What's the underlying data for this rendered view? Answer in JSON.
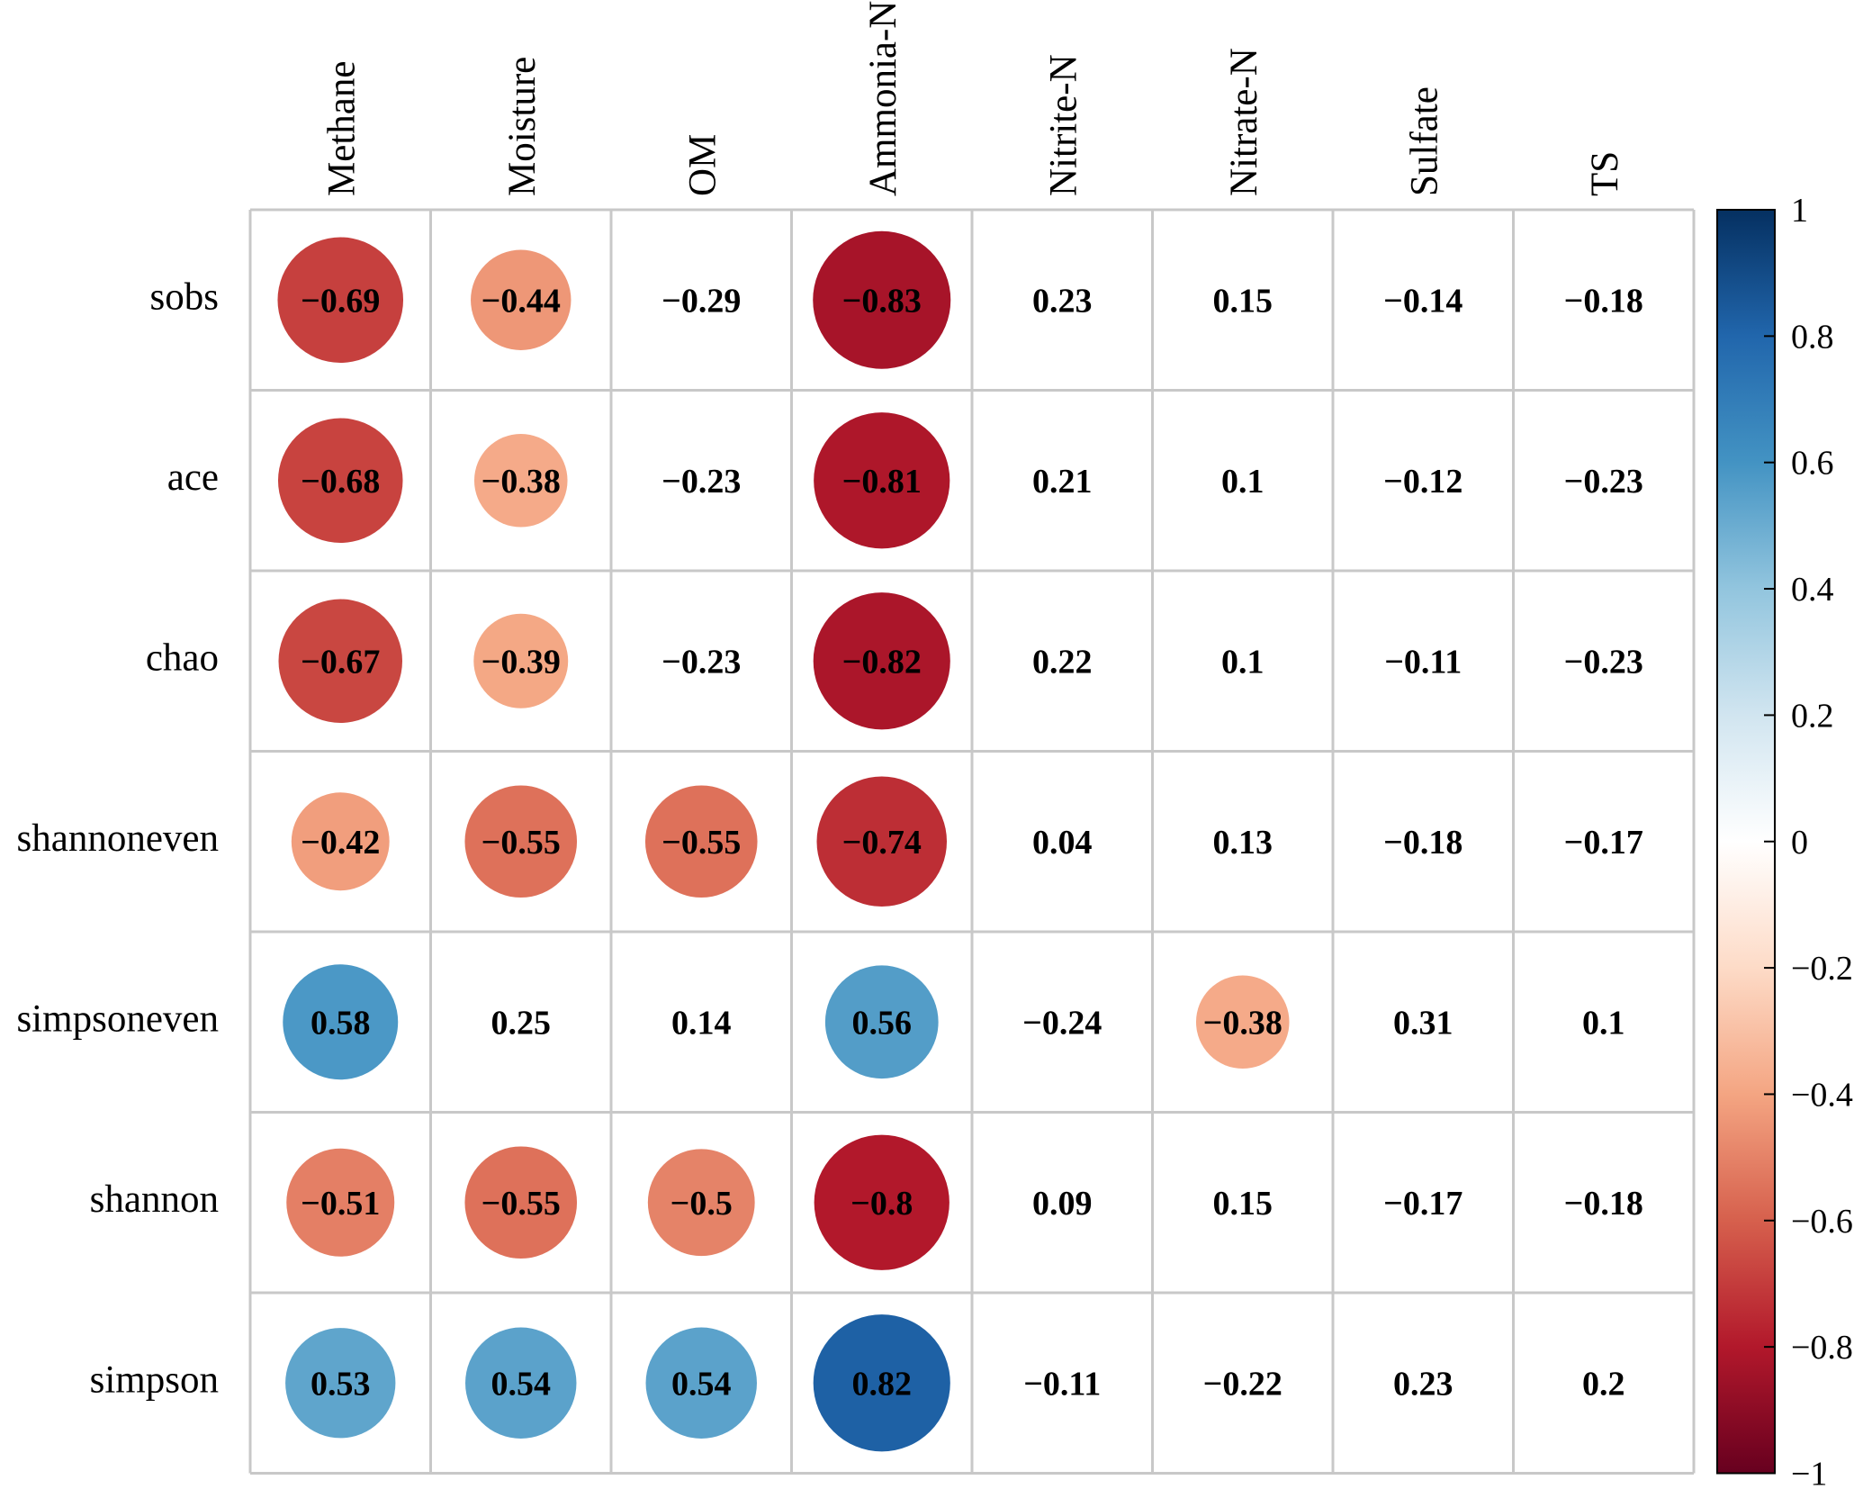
{
  "chart_data": {
    "type": "heatmap",
    "style": "correlogram-circles",
    "columns": [
      "Methane",
      "Moisture",
      "OM",
      "Ammonia-N",
      "Nitrite-N",
      "Nitrate-N",
      "Sulfate",
      "TS"
    ],
    "rows": [
      "sobs",
      "ace",
      "chao",
      "shannoneven",
      "simpsoneven",
      "shannon",
      "simpson"
    ],
    "labels": [
      [
        "−0.69",
        "−0.44",
        "−0.29",
        "−0.83",
        "0.23",
        "0.15",
        "−0.14",
        "−0.18"
      ],
      [
        "−0.68",
        "−0.38",
        "−0.23",
        "−0.81",
        "0.21",
        "0.1",
        "−0.12",
        "−0.23"
      ],
      [
        "−0.67",
        "−0.39",
        "−0.23",
        "−0.82",
        "0.22",
        "0.1",
        "−0.11",
        "−0.23"
      ],
      [
        "−0.42",
        "−0.55",
        "−0.55",
        "−0.74",
        "0.04",
        "0.13",
        "−0.18",
        "−0.17"
      ],
      [
        "0.58",
        "0.25",
        "0.14",
        "0.56",
        "−0.24",
        "−0.38",
        "0.31",
        "0.1"
      ],
      [
        "−0.51",
        "−0.55",
        "−0.5",
        "−0.8",
        "0.09",
        "0.15",
        "−0.17",
        "−0.18"
      ],
      [
        "0.53",
        "0.54",
        "0.54",
        "0.82",
        "−0.11",
        "−0.22",
        "0.23",
        "0.2"
      ]
    ],
    "values": [
      [
        -0.69,
        -0.44,
        -0.29,
        -0.83,
        0.23,
        0.15,
        -0.14,
        -0.18
      ],
      [
        -0.68,
        -0.38,
        -0.23,
        -0.81,
        0.21,
        0.1,
        -0.12,
        -0.23
      ],
      [
        -0.67,
        -0.39,
        -0.23,
        -0.82,
        0.22,
        0.1,
        -0.11,
        -0.23
      ],
      [
        -0.42,
        -0.55,
        -0.55,
        -0.74,
        0.04,
        0.13,
        -0.18,
        -0.17
      ],
      [
        0.58,
        0.25,
        0.14,
        0.56,
        -0.24,
        -0.38,
        0.31,
        0.1
      ],
      [
        -0.51,
        -0.55,
        -0.5,
        -0.8,
        0.09,
        0.15,
        -0.17,
        -0.18
      ],
      [
        0.53,
        0.54,
        0.54,
        0.82,
        -0.11,
        -0.22,
        0.23,
        0.2
      ]
    ],
    "significant": [
      [
        true,
        true,
        false,
        true,
        false,
        false,
        false,
        false
      ],
      [
        true,
        true,
        false,
        true,
        false,
        false,
        false,
        false
      ],
      [
        true,
        true,
        false,
        true,
        false,
        false,
        false,
        false
      ],
      [
        true,
        true,
        true,
        true,
        false,
        false,
        false,
        false
      ],
      [
        true,
        false,
        false,
        true,
        false,
        true,
        false,
        false
      ],
      [
        true,
        true,
        true,
        true,
        false,
        false,
        false,
        false
      ],
      [
        true,
        true,
        true,
        true,
        false,
        false,
        false,
        false
      ]
    ],
    "colorbar": {
      "range": [
        -1,
        1
      ],
      "ticks": [
        1,
        0.8,
        0.6,
        0.4,
        0.2,
        0,
        -0.2,
        -0.4,
        -0.6,
        -0.8,
        -1
      ],
      "tick_labels": [
        "1",
        "0.8",
        "0.6",
        "0.4",
        "0.2",
        "0",
        "−0.2",
        "−0.4",
        "−0.6",
        "−0.8",
        "−1"
      ],
      "palette": [
        "#67001F",
        "#B2182B",
        "#D6604D",
        "#F4A582",
        "#FDDBC7",
        "#FFFFFF",
        "#D1E5F0",
        "#92C5DE",
        "#4393C3",
        "#2166AC",
        "#053061"
      ]
    },
    "grid": true,
    "grid_color": "#c8c8c8"
  }
}
